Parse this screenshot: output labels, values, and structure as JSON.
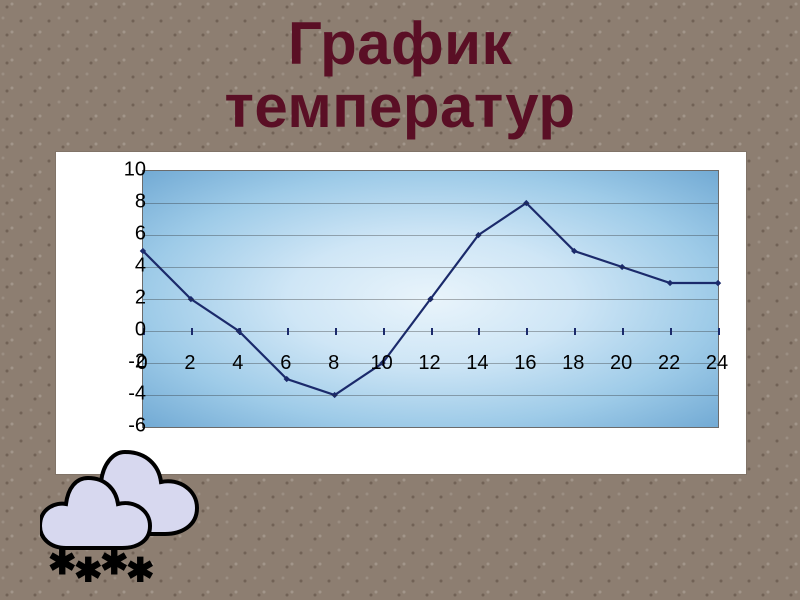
{
  "title_line1": "График",
  "title_line2": "температур",
  "chart": {
    "type": "line",
    "background_color": "#ffffff",
    "plot_gradient_inner": "#e9f4fb",
    "plot_gradient_outer": "#72aad4",
    "grid_color": "rgba(40,40,40,.35)",
    "axis_color": "#000000",
    "line_color": "#1b2a6b",
    "marker_color": "#1b2a6b",
    "line_width": 2.2,
    "marker_size": 4.5,
    "label_fontsize": 20,
    "label_color": "#000000",
    "title_color": "#5a0f25",
    "title_fontsize": 60,
    "ylim": [
      -6,
      10
    ],
    "ytick_step": 2,
    "yticks": [
      10,
      8,
      6,
      4,
      2,
      0,
      -2,
      -4,
      -6
    ],
    "xlim": [
      0,
      24
    ],
    "xtick_step": 2,
    "xticks": [
      0,
      2,
      4,
      6,
      8,
      10,
      12,
      14,
      16,
      18,
      20,
      22,
      24
    ],
    "xtick_label_baseline_y": -2,
    "x": [
      0,
      2,
      4,
      6,
      8,
      10,
      12,
      14,
      16,
      18,
      20,
      22,
      24
    ],
    "y": [
      5,
      2,
      0,
      -3,
      -4,
      -2,
      2,
      6,
      8,
      5,
      4,
      3,
      3
    ]
  },
  "decoration": {
    "cloud_fill": "#d7d8ef",
    "cloud_stroke": "#000000",
    "snowflake_glyph": "✱",
    "snowflake_color": "#000000",
    "snowflake_count": 4
  }
}
